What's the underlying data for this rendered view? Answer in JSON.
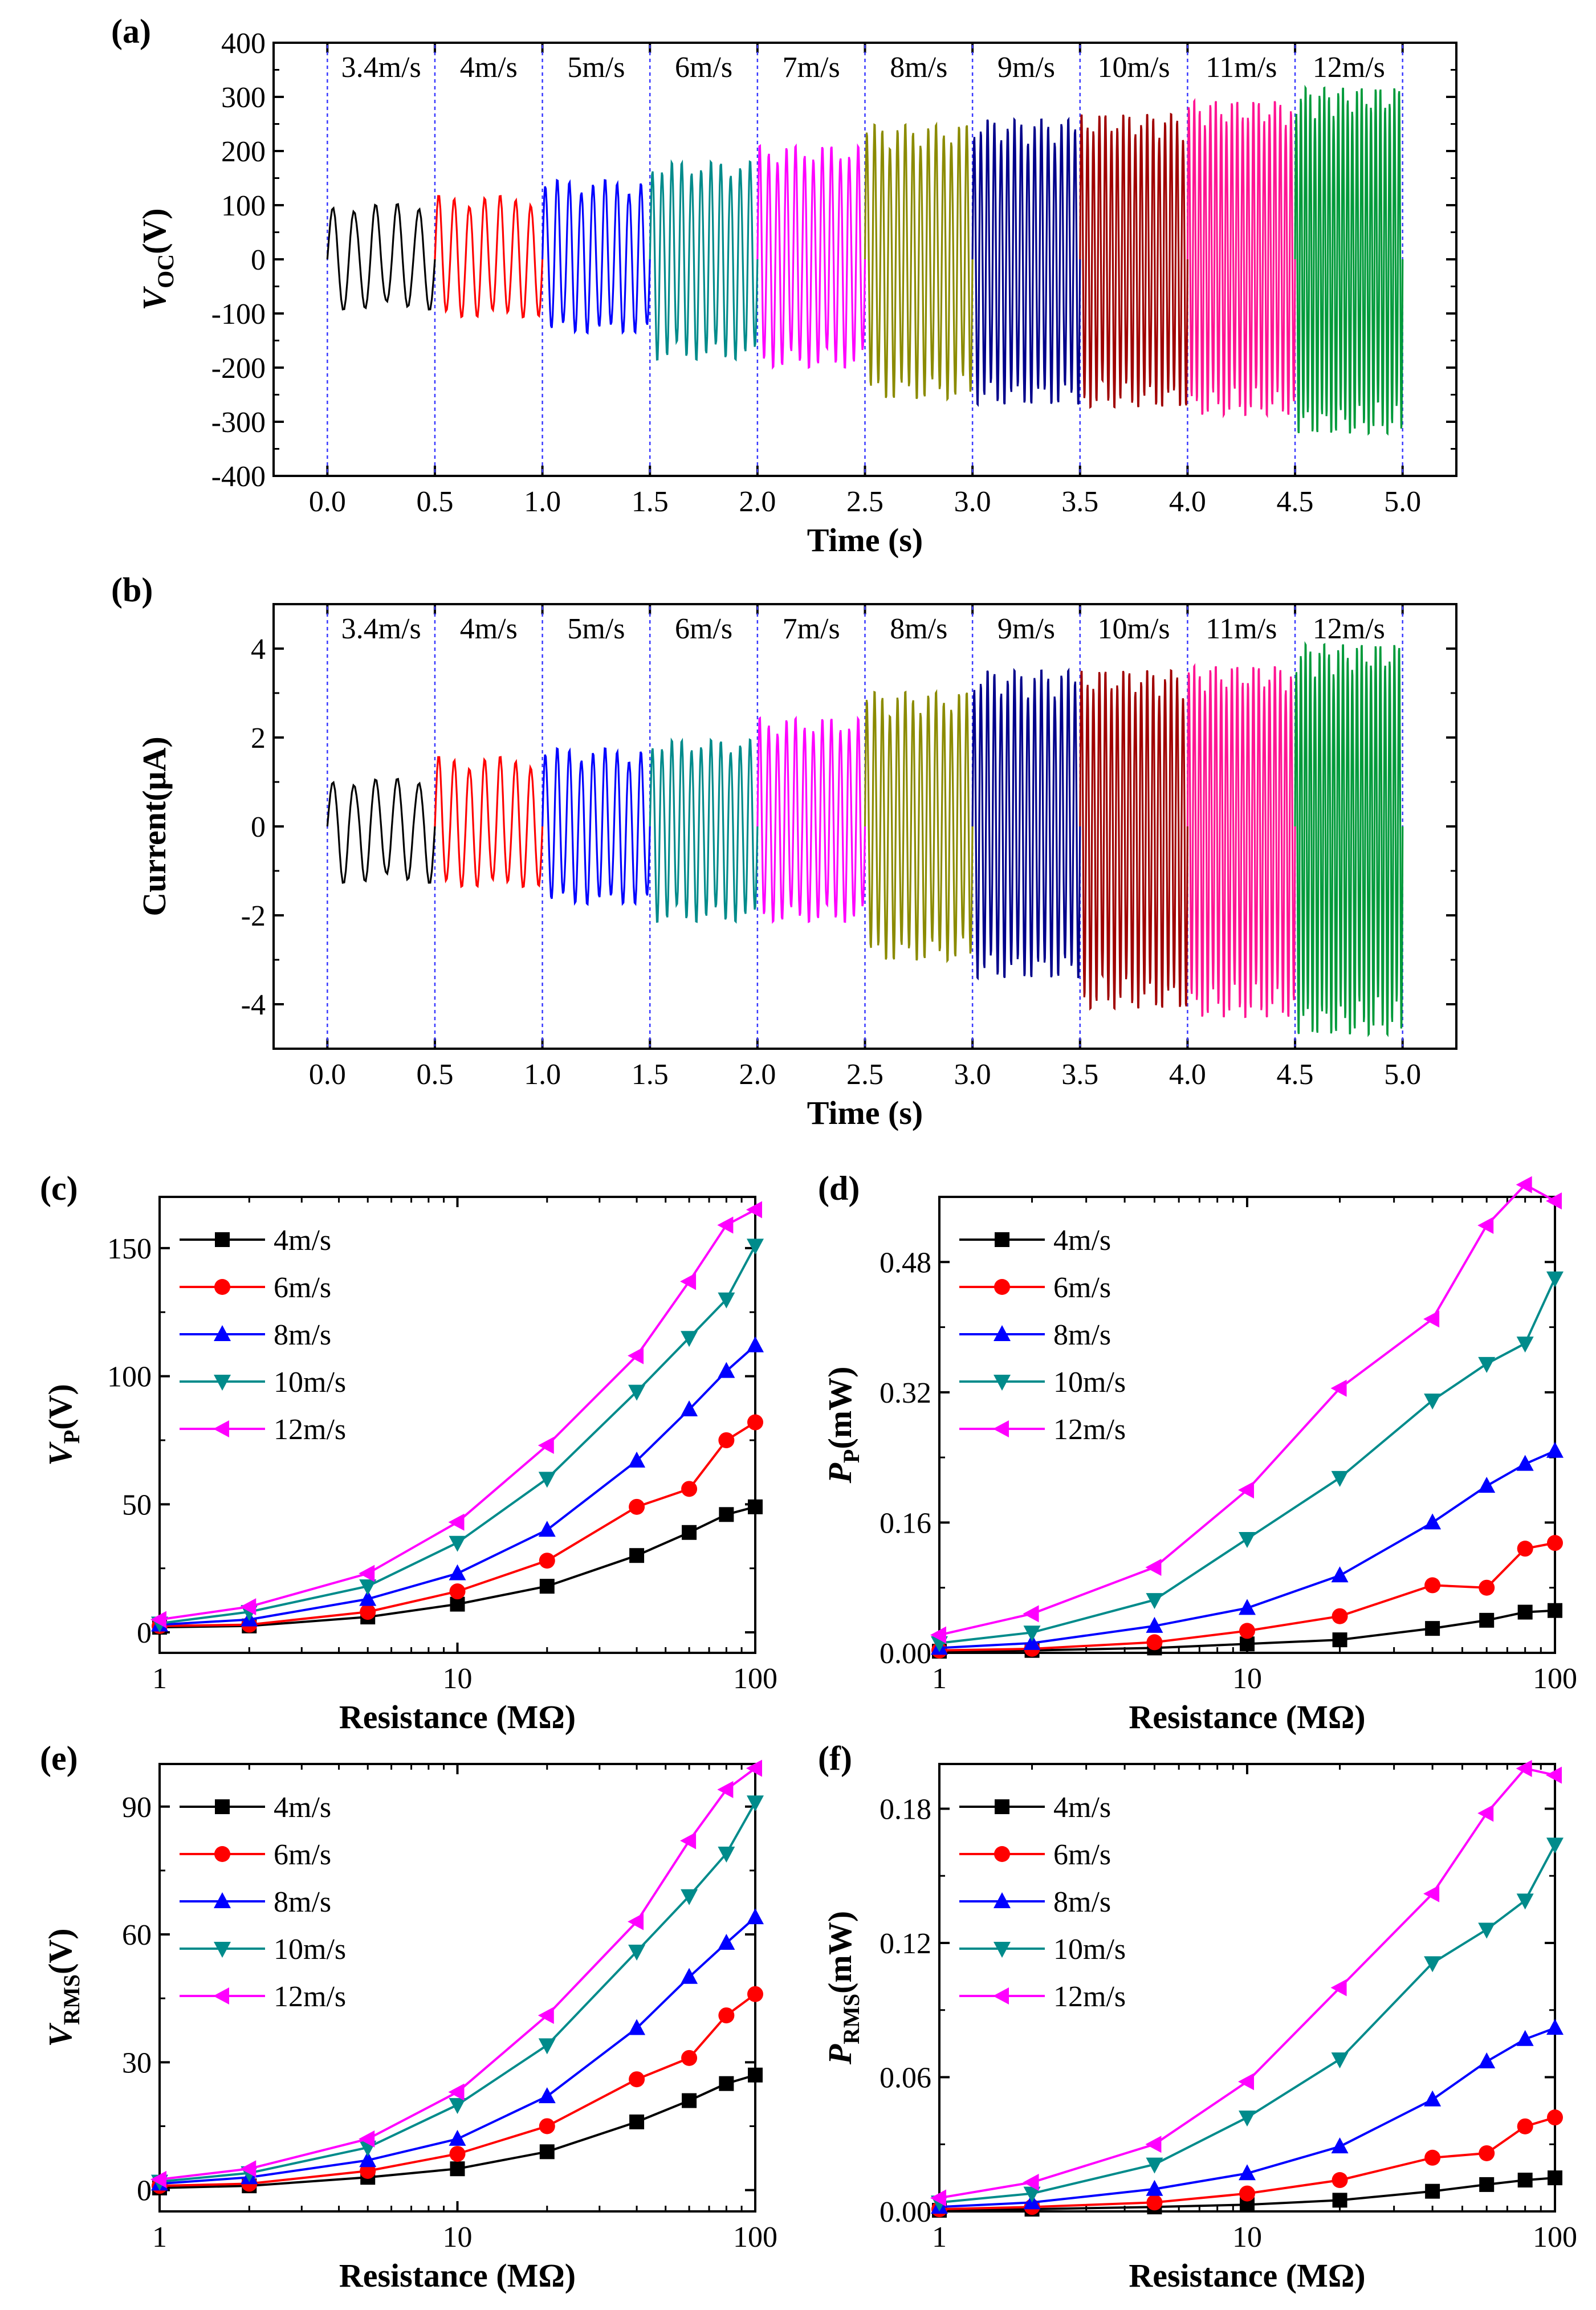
{
  "figure": {
    "panel_labels": [
      "(a)",
      "(b)",
      "(c)",
      "(d)",
      "(e)",
      "(f)"
    ]
  },
  "chart_data": [
    {
      "panel": "(a)",
      "type": "line",
      "subtype": "waveform",
      "xlabel": "Time (s)",
      "ylabel_main": "V",
      "ylabel_sub": "OC",
      "ylabel_suffix": "(V)",
      "xlim": [
        -0.25,
        5.25
      ],
      "ylim": [
        -400,
        400
      ],
      "xticks": [
        0,
        0.5,
        1,
        1.5,
        2,
        2.5,
        3,
        3.5,
        4,
        4.5,
        5
      ],
      "xtick_labels": [
        "0.0",
        "0.5",
        "1.0",
        "1.5",
        "2.0",
        "2.5",
        "3.0",
        "3.5",
        "4.0",
        "4.5",
        "5.0"
      ],
      "yticks": [
        -400,
        -300,
        -200,
        -100,
        0,
        100,
        200,
        300,
        400
      ],
      "ytick_labels": [
        "-400",
        "-300",
        "-200",
        "-100",
        "0",
        "100",
        "200",
        "300",
        "400"
      ],
      "segments": [
        {
          "label": "3.4m/s",
          "t0": 0.0,
          "t1": 0.5,
          "pos_amp": 105,
          "neg_amp": 95,
          "cycles": 5,
          "color": "#000000"
        },
        {
          "label": "4m/s",
          "t0": 0.5,
          "t1": 1.0,
          "pos_amp": 120,
          "neg_amp": 110,
          "cycles": 7,
          "color": "#ff0000"
        },
        {
          "label": "5m/s",
          "t0": 1.0,
          "t1": 1.5,
          "pos_amp": 150,
          "neg_amp": 140,
          "cycles": 9,
          "color": "#0000ff"
        },
        {
          "label": "6m/s",
          "t0": 1.5,
          "t1": 2.0,
          "pos_amp": 185,
          "neg_amp": 190,
          "cycles": 11,
          "color": "#008b8b"
        },
        {
          "label": "7m/s",
          "t0": 2.0,
          "t1": 2.5,
          "pos_amp": 215,
          "neg_amp": 205,
          "cycles": 12,
          "color": "#ff00ff"
        },
        {
          "label": "8m/s",
          "t0": 2.5,
          "t1": 3.0,
          "pos_amp": 255,
          "neg_amp": 265,
          "cycles": 14,
          "color": "#8b8b00"
        },
        {
          "label": "9m/s",
          "t0": 3.0,
          "t1": 3.5,
          "pos_amp": 265,
          "neg_amp": 275,
          "cycles": 16,
          "color": "#00008b"
        },
        {
          "label": "10m/s",
          "t0": 3.5,
          "t1": 4.0,
          "pos_amp": 275,
          "neg_amp": 280,
          "cycles": 18,
          "color": "#a00000"
        },
        {
          "label": "11m/s",
          "t0": 4.0,
          "t1": 4.5,
          "pos_amp": 300,
          "neg_amp": 295,
          "cycles": 20,
          "color": "#ff1493"
        },
        {
          "label": "12m/s",
          "t0": 4.5,
          "t1": 5.0,
          "pos_amp": 325,
          "neg_amp": 330,
          "cycles": 23,
          "color": "#009a3a"
        }
      ]
    },
    {
      "panel": "(b)",
      "type": "line",
      "subtype": "waveform",
      "xlabel": "Time (s)",
      "ylabel_main": "Current(μA)",
      "ylabel_sub": "",
      "ylabel_suffix": "",
      "xlim": [
        -0.25,
        5.25
      ],
      "ylim": [
        -5,
        5
      ],
      "xticks": [
        0,
        0.5,
        1,
        1.5,
        2,
        2.5,
        3,
        3.5,
        4,
        4.5,
        5
      ],
      "xtick_labels": [
        "0.0",
        "0.5",
        "1.0",
        "1.5",
        "2.0",
        "2.5",
        "3.0",
        "3.5",
        "4.0",
        "4.5",
        "5.0"
      ],
      "yticks": [
        -4,
        -2,
        0,
        2,
        4
      ],
      "ytick_labels": [
        "-4",
        "-2",
        "0",
        "2",
        "4"
      ],
      "segments": [
        {
          "label": "3.4m/s",
          "t0": 0.0,
          "t1": 0.5,
          "pos_amp": 1.1,
          "neg_amp": 1.3,
          "cycles": 5,
          "color": "#000000"
        },
        {
          "label": "4m/s",
          "t0": 0.5,
          "t1": 1.0,
          "pos_amp": 1.6,
          "neg_amp": 1.4,
          "cycles": 7,
          "color": "#ff0000"
        },
        {
          "label": "5m/s",
          "t0": 1.0,
          "t1": 1.5,
          "pos_amp": 1.8,
          "neg_amp": 1.8,
          "cycles": 9,
          "color": "#0000ff"
        },
        {
          "label": "6m/s",
          "t0": 1.5,
          "t1": 2.0,
          "pos_amp": 2.0,
          "neg_amp": 2.2,
          "cycles": 11,
          "color": "#008b8b"
        },
        {
          "label": "7m/s",
          "t0": 2.0,
          "t1": 2.5,
          "pos_amp": 2.5,
          "neg_amp": 2.2,
          "cycles": 12,
          "color": "#ff00ff"
        },
        {
          "label": "8m/s",
          "t0": 2.5,
          "t1": 3.0,
          "pos_amp": 3.1,
          "neg_amp": 3.1,
          "cycles": 14,
          "color": "#8b8b00"
        },
        {
          "label": "9m/s",
          "t0": 3.0,
          "t1": 3.5,
          "pos_amp": 3.6,
          "neg_amp": 3.5,
          "cycles": 16,
          "color": "#00008b"
        },
        {
          "label": "10m/s",
          "t0": 3.5,
          "t1": 4.0,
          "pos_amp": 3.6,
          "neg_amp": 4.2,
          "cycles": 18,
          "color": "#a00000"
        },
        {
          "label": "11m/s",
          "t0": 4.0,
          "t1": 4.5,
          "pos_amp": 3.7,
          "neg_amp": 4.4,
          "cycles": 20,
          "color": "#ff1493"
        },
        {
          "label": "12m/s",
          "t0": 4.5,
          "t1": 5.0,
          "pos_amp": 4.2,
          "neg_amp": 4.8,
          "cycles": 23,
          "color": "#009a3a"
        }
      ]
    },
    {
      "panel": "(c)",
      "type": "line",
      "xscale": "log",
      "xlabel": "Resistance (MΩ)",
      "ylabel_main": "V",
      "ylabel_sub": "P",
      "ylabel_suffix": "(V)",
      "xlim": [
        1,
        100
      ],
      "ylim": [
        -8,
        170
      ],
      "xticks": [
        1,
        10,
        100
      ],
      "xtick_labels": [
        "1",
        "10",
        "100"
      ],
      "yticks": [
        0,
        50,
        100,
        150
      ],
      "ytick_labels": [
        "0",
        "50",
        "100",
        "150"
      ],
      "legend_position": "top-left",
      "x": [
        1,
        2,
        5,
        10,
        20,
        40,
        60,
        80,
        100
      ],
      "series": [
        {
          "name": "4m/s",
          "color": "#000000",
          "marker": "square",
          "values": [
            2,
            2.5,
            6,
            11,
            18,
            30,
            39,
            46,
            49
          ]
        },
        {
          "name": "6m/s",
          "color": "#ff0000",
          "marker": "circle",
          "values": [
            2.5,
            3,
            8,
            16,
            28,
            49,
            56,
            75,
            82
          ]
        },
        {
          "name": "8m/s",
          "color": "#0000ff",
          "marker": "triangle-up",
          "values": [
            3,
            5,
            13,
            23,
            40,
            67,
            87,
            102,
            112
          ]
        },
        {
          "name": "10m/s",
          "color": "#008b8b",
          "marker": "triangle-down",
          "values": [
            3.5,
            8,
            18,
            35,
            60,
            94,
            115,
            130,
            151
          ]
        },
        {
          "name": "12m/s",
          "color": "#ff00ff",
          "marker": "triangle-left",
          "values": [
            5,
            10,
            23,
            43,
            73,
            108,
            137,
            159,
            165
          ]
        }
      ]
    },
    {
      "panel": "(d)",
      "type": "line",
      "xscale": "log",
      "xlabel": "Resistance (MΩ)",
      "ylabel_main": "P",
      "ylabel_sub": "P",
      "ylabel_suffix": "(mW)",
      "xlim": [
        1,
        100
      ],
      "ylim": [
        0,
        0.56
      ],
      "xticks": [
        1,
        10,
        100
      ],
      "xtick_labels": [
        "1",
        "10",
        "100"
      ],
      "yticks": [
        0,
        0.16,
        0.32,
        0.48
      ],
      "ytick_labels": [
        "0.00",
        "0.16",
        "0.32",
        "0.48"
      ],
      "legend_position": "top-left",
      "x": [
        1,
        2,
        5,
        10,
        20,
        40,
        60,
        80,
        100
      ],
      "series": [
        {
          "name": "4m/s",
          "color": "#000000",
          "marker": "square",
          "values": [
            0.002,
            0.003,
            0.006,
            0.011,
            0.016,
            0.03,
            0.04,
            0.05,
            0.052
          ]
        },
        {
          "name": "6m/s",
          "color": "#ff0000",
          "marker": "circle",
          "values": [
            0.003,
            0.005,
            0.013,
            0.027,
            0.045,
            0.083,
            0.08,
            0.128,
            0.135
          ]
        },
        {
          "name": "8m/s",
          "color": "#0000ff",
          "marker": "triangle-up",
          "values": [
            0.006,
            0.012,
            0.033,
            0.055,
            0.095,
            0.16,
            0.205,
            0.232,
            0.248
          ]
        },
        {
          "name": "10m/s",
          "color": "#008b8b",
          "marker": "triangle-down",
          "values": [
            0.012,
            0.025,
            0.065,
            0.14,
            0.215,
            0.31,
            0.355,
            0.38,
            0.46
          ]
        },
        {
          "name": "12m/s",
          "color": "#ff00ff",
          "marker": "triangle-left",
          "values": [
            0.022,
            0.048,
            0.105,
            0.2,
            0.325,
            0.41,
            0.525,
            0.575,
            0.555
          ]
        }
      ]
    },
    {
      "panel": "(e)",
      "type": "line",
      "xscale": "log",
      "xlabel": "Resistance (MΩ)",
      "ylabel_main": "V",
      "ylabel_sub": "RMS",
      "ylabel_suffix": "(V)",
      "xlim": [
        1,
        100
      ],
      "ylim": [
        -5,
        100
      ],
      "xticks": [
        1,
        10,
        100
      ],
      "xtick_labels": [
        "1",
        "10",
        "100"
      ],
      "yticks": [
        0,
        30,
        60,
        90
      ],
      "ytick_labels": [
        "0",
        "30",
        "60",
        "90"
      ],
      "legend_position": "top-left",
      "x": [
        1,
        2,
        5,
        10,
        20,
        40,
        60,
        80,
        100
      ],
      "series": [
        {
          "name": "4m/s",
          "color": "#000000",
          "marker": "square",
          "values": [
            0.5,
            1,
            3,
            5,
            9,
            16,
            21,
            25,
            27
          ]
        },
        {
          "name": "6m/s",
          "color": "#ff0000",
          "marker": "circle",
          "values": [
            1,
            1.5,
            4.5,
            8.5,
            15,
            26,
            31,
            41,
            46
          ]
        },
        {
          "name": "8m/s",
          "color": "#0000ff",
          "marker": "triangle-up",
          "values": [
            1.5,
            3,
            7,
            12,
            22,
            38,
            50,
            58,
            64
          ]
        },
        {
          "name": "10m/s",
          "color": "#008b8b",
          "marker": "triangle-down",
          "values": [
            2,
            4,
            10,
            20,
            34,
            56,
            69,
            79,
            91
          ]
        },
        {
          "name": "12m/s",
          "color": "#ff00ff",
          "marker": "triangle-left",
          "values": [
            2.5,
            5,
            12,
            23,
            41,
            63,
            82,
            94,
            99
          ]
        }
      ]
    },
    {
      "panel": "(f)",
      "type": "line",
      "xscale": "log",
      "xlabel": "Resistance (MΩ)",
      "ylabel_main": "P",
      "ylabel_sub": "RMS",
      "ylabel_suffix": "(mW)",
      "xlim": [
        1,
        100
      ],
      "ylim": [
        0,
        0.2
      ],
      "xticks": [
        1,
        10,
        100
      ],
      "xtick_labels": [
        "1",
        "10",
        "100"
      ],
      "yticks": [
        0,
        0.06,
        0.12,
        0.18
      ],
      "ytick_labels": [
        "0.00",
        "0.06",
        "0.12",
        "0.18"
      ],
      "legend_position": "top-left",
      "x": [
        1,
        2,
        5,
        10,
        20,
        40,
        60,
        80,
        100
      ],
      "series": [
        {
          "name": "4m/s",
          "color": "#000000",
          "marker": "square",
          "values": [
            0.0005,
            0.001,
            0.002,
            0.003,
            0.005,
            0.009,
            0.012,
            0.014,
            0.015
          ]
        },
        {
          "name": "6m/s",
          "color": "#ff0000",
          "marker": "circle",
          "values": [
            0.001,
            0.002,
            0.004,
            0.008,
            0.014,
            0.024,
            0.026,
            0.038,
            0.042
          ]
        },
        {
          "name": "8m/s",
          "color": "#0000ff",
          "marker": "triangle-up",
          "values": [
            0.002,
            0.004,
            0.01,
            0.017,
            0.029,
            0.05,
            0.067,
            0.077,
            0.082
          ]
        },
        {
          "name": "10m/s",
          "color": "#008b8b",
          "marker": "triangle-down",
          "values": [
            0.004,
            0.008,
            0.021,
            0.042,
            0.068,
            0.111,
            0.126,
            0.139,
            0.164
          ]
        },
        {
          "name": "12m/s",
          "color": "#ff00ff",
          "marker": "triangle-left",
          "values": [
            0.006,
            0.013,
            0.03,
            0.058,
            0.1,
            0.142,
            0.178,
            0.198,
            0.195
          ]
        }
      ]
    }
  ]
}
